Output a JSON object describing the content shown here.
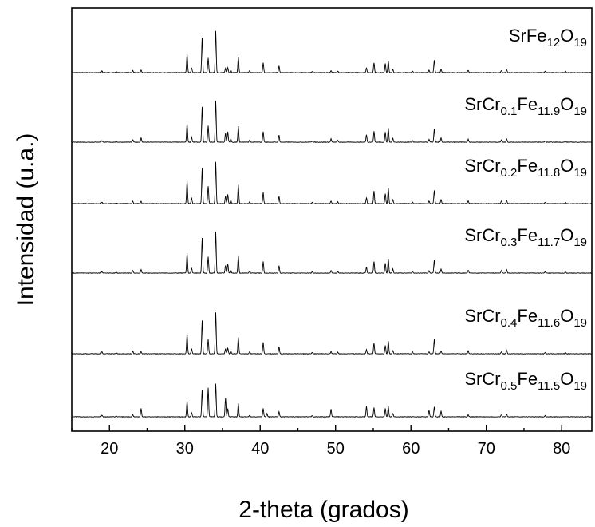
{
  "chart_data": {
    "type": "line",
    "title": "",
    "xlabel": "2-theta (grados)",
    "ylabel": "Intensidad (u.a.)",
    "xlim": [
      15,
      84
    ],
    "x_ticks": [
      "20",
      "30",
      "40",
      "50",
      "60",
      "70",
      "80"
    ],
    "x_tick_values": [
      20,
      30,
      40,
      50,
      60,
      70,
      80
    ],
    "y_ticks_shown": false,
    "grid": false,
    "colors": {
      "line": "#000000",
      "axis": "#000000",
      "background": "#ffffff"
    },
    "series": [
      {
        "name": "SrFe12O19",
        "label_main": "SrFe",
        "label_parts": [
          [
            "SrFe",
            ""
          ],
          [
            "12",
            "sub"
          ],
          [
            "O",
            ""
          ],
          [
            "19",
            "sub"
          ]
        ],
        "peaks": [
          [
            19.0,
            0.04
          ],
          [
            20.9,
            0.02
          ],
          [
            23.1,
            0.05
          ],
          [
            24.2,
            0.06
          ],
          [
            30.3,
            0.45
          ],
          [
            30.9,
            0.12
          ],
          [
            32.3,
            0.85
          ],
          [
            33.1,
            0.35
          ],
          [
            34.1,
            1.0
          ],
          [
            35.4,
            0.1
          ],
          [
            35.7,
            0.12
          ],
          [
            36.1,
            0.06
          ],
          [
            37.1,
            0.38
          ],
          [
            38.6,
            0.05
          ],
          [
            40.4,
            0.24
          ],
          [
            42.5,
            0.16
          ],
          [
            46.9,
            0.03
          ],
          [
            49.4,
            0.05
          ],
          [
            50.3,
            0.04
          ],
          [
            54.1,
            0.12
          ],
          [
            55.1,
            0.24
          ],
          [
            56.6,
            0.22
          ],
          [
            57.0,
            0.28
          ],
          [
            57.6,
            0.08
          ],
          [
            60.2,
            0.04
          ],
          [
            62.4,
            0.06
          ],
          [
            63.1,
            0.3
          ],
          [
            64.0,
            0.08
          ],
          [
            67.6,
            0.06
          ],
          [
            72.0,
            0.05
          ],
          [
            72.7,
            0.07
          ],
          [
            77.8,
            0.03
          ],
          [
            80.5,
            0.03
          ]
        ]
      },
      {
        "name": "SrCr0.1Fe11.9O19",
        "label_parts": [
          [
            "SrCr",
            ""
          ],
          [
            "0.1",
            "sub"
          ],
          [
            "Fe",
            ""
          ],
          [
            "11.9",
            "sub"
          ],
          [
            "O",
            ""
          ],
          [
            "19",
            "sub"
          ]
        ],
        "peaks": [
          [
            19.0,
            0.04
          ],
          [
            20.9,
            0.02
          ],
          [
            23.1,
            0.06
          ],
          [
            24.2,
            0.1
          ],
          [
            30.3,
            0.45
          ],
          [
            30.9,
            0.12
          ],
          [
            32.3,
            0.85
          ],
          [
            33.1,
            0.4
          ],
          [
            34.1,
            1.0
          ],
          [
            35.4,
            0.22
          ],
          [
            35.7,
            0.25
          ],
          [
            36.1,
            0.08
          ],
          [
            37.1,
            0.38
          ],
          [
            38.6,
            0.05
          ],
          [
            40.4,
            0.26
          ],
          [
            42.5,
            0.17
          ],
          [
            46.9,
            0.03
          ],
          [
            49.4,
            0.08
          ],
          [
            50.3,
            0.04
          ],
          [
            54.1,
            0.18
          ],
          [
            55.1,
            0.26
          ],
          [
            56.6,
            0.24
          ],
          [
            57.0,
            0.34
          ],
          [
            57.6,
            0.1
          ],
          [
            60.2,
            0.04
          ],
          [
            62.4,
            0.07
          ],
          [
            63.1,
            0.32
          ],
          [
            64.0,
            0.1
          ],
          [
            67.6,
            0.07
          ],
          [
            72.0,
            0.06
          ],
          [
            72.7,
            0.08
          ],
          [
            77.8,
            0.03
          ],
          [
            80.5,
            0.03
          ]
        ]
      },
      {
        "name": "SrCr0.2Fe11.8O19",
        "label_parts": [
          [
            "SrCr",
            ""
          ],
          [
            "0.2",
            "sub"
          ],
          [
            "Fe",
            ""
          ],
          [
            "11.8",
            "sub"
          ],
          [
            "O",
            ""
          ],
          [
            "19",
            "sub"
          ]
        ],
        "peaks": [
          [
            19.0,
            0.04
          ],
          [
            20.9,
            0.02
          ],
          [
            23.1,
            0.06
          ],
          [
            24.2,
            0.06
          ],
          [
            30.3,
            0.55
          ],
          [
            30.9,
            0.14
          ],
          [
            32.3,
            0.85
          ],
          [
            33.1,
            0.42
          ],
          [
            34.1,
            1.0
          ],
          [
            35.4,
            0.18
          ],
          [
            35.7,
            0.22
          ],
          [
            36.1,
            0.08
          ],
          [
            37.1,
            0.45
          ],
          [
            38.6,
            0.05
          ],
          [
            40.4,
            0.27
          ],
          [
            42.5,
            0.18
          ],
          [
            46.9,
            0.03
          ],
          [
            49.4,
            0.06
          ],
          [
            50.3,
            0.04
          ],
          [
            54.1,
            0.14
          ],
          [
            55.1,
            0.3
          ],
          [
            56.6,
            0.24
          ],
          [
            57.0,
            0.38
          ],
          [
            57.6,
            0.1
          ],
          [
            60.2,
            0.04
          ],
          [
            62.4,
            0.06
          ],
          [
            63.1,
            0.32
          ],
          [
            64.0,
            0.1
          ],
          [
            67.6,
            0.07
          ],
          [
            72.0,
            0.06
          ],
          [
            72.7,
            0.08
          ],
          [
            77.8,
            0.03
          ],
          [
            80.5,
            0.03
          ]
        ]
      },
      {
        "name": "SrCr0.3Fe11.7O19",
        "label_parts": [
          [
            "SrCr",
            ""
          ],
          [
            "0.3",
            "sub"
          ],
          [
            "Fe",
            ""
          ],
          [
            "11.7",
            "sub"
          ],
          [
            "O",
            ""
          ],
          [
            "19",
            "sub"
          ]
        ],
        "peaks": [
          [
            19.0,
            0.04
          ],
          [
            20.9,
            0.02
          ],
          [
            23.1,
            0.06
          ],
          [
            24.2,
            0.08
          ],
          [
            30.3,
            0.48
          ],
          [
            30.9,
            0.12
          ],
          [
            32.3,
            0.85
          ],
          [
            33.1,
            0.4
          ],
          [
            34.1,
            1.0
          ],
          [
            35.4,
            0.18
          ],
          [
            35.7,
            0.22
          ],
          [
            36.1,
            0.08
          ],
          [
            37.1,
            0.42
          ],
          [
            38.6,
            0.05
          ],
          [
            40.4,
            0.28
          ],
          [
            42.5,
            0.18
          ],
          [
            46.9,
            0.03
          ],
          [
            49.4,
            0.06
          ],
          [
            50.3,
            0.04
          ],
          [
            54.1,
            0.15
          ],
          [
            55.1,
            0.28
          ],
          [
            56.6,
            0.24
          ],
          [
            57.0,
            0.35
          ],
          [
            57.6,
            0.1
          ],
          [
            60.2,
            0.04
          ],
          [
            62.4,
            0.06
          ],
          [
            63.1,
            0.32
          ],
          [
            64.0,
            0.1
          ],
          [
            67.6,
            0.07
          ],
          [
            72.0,
            0.06
          ],
          [
            72.7,
            0.08
          ],
          [
            77.8,
            0.03
          ],
          [
            80.5,
            0.03
          ]
        ]
      },
      {
        "name": "SrCr0.4Fe11.6O19",
        "label_parts": [
          [
            "SrCr",
            ""
          ],
          [
            "0.4",
            "sub"
          ],
          [
            "Fe",
            ""
          ],
          [
            "11.6",
            "sub"
          ],
          [
            "O",
            ""
          ],
          [
            "19",
            "sub"
          ]
        ],
        "peaks": [
          [
            19.0,
            0.05
          ],
          [
            20.9,
            0.02
          ],
          [
            23.1,
            0.06
          ],
          [
            24.2,
            0.05
          ],
          [
            30.3,
            0.48
          ],
          [
            30.9,
            0.12
          ],
          [
            32.3,
            0.8
          ],
          [
            33.1,
            0.35
          ],
          [
            34.1,
            1.0
          ],
          [
            35.4,
            0.12
          ],
          [
            35.7,
            0.14
          ],
          [
            36.1,
            0.06
          ],
          [
            37.1,
            0.4
          ],
          [
            38.6,
            0.05
          ],
          [
            40.4,
            0.27
          ],
          [
            42.5,
            0.17
          ],
          [
            46.9,
            0.03
          ],
          [
            49.4,
            0.05
          ],
          [
            50.3,
            0.04
          ],
          [
            54.1,
            0.1
          ],
          [
            55.1,
            0.26
          ],
          [
            56.6,
            0.2
          ],
          [
            57.0,
            0.3
          ],
          [
            57.6,
            0.08
          ],
          [
            60.2,
            0.05
          ],
          [
            62.4,
            0.05
          ],
          [
            63.1,
            0.35
          ],
          [
            64.0,
            0.06
          ],
          [
            67.6,
            0.07
          ],
          [
            72.0,
            0.05
          ],
          [
            72.7,
            0.08
          ],
          [
            77.8,
            0.03
          ],
          [
            80.5,
            0.03
          ]
        ]
      },
      {
        "name": "SrCr0.5Fe11.5O19",
        "label_parts": [
          [
            "SrCr",
            ""
          ],
          [
            "0.5",
            "sub"
          ],
          [
            "Fe",
            ""
          ],
          [
            "11.5",
            "sub"
          ],
          [
            "O",
            ""
          ],
          [
            "19",
            "sub"
          ]
        ],
        "peaks": [
          [
            19.0,
            0.04
          ],
          [
            20.9,
            0.02
          ],
          [
            23.1,
            0.05
          ],
          [
            24.2,
            0.2
          ],
          [
            30.3,
            0.38
          ],
          [
            30.9,
            0.1
          ],
          [
            32.3,
            0.65
          ],
          [
            33.1,
            0.7
          ],
          [
            34.1,
            0.8
          ],
          [
            35.4,
            0.45
          ],
          [
            35.7,
            0.2
          ],
          [
            37.1,
            0.32
          ],
          [
            38.6,
            0.04
          ],
          [
            40.4,
            0.2
          ],
          [
            40.9,
            0.08
          ],
          [
            42.5,
            0.12
          ],
          [
            46.9,
            0.03
          ],
          [
            49.4,
            0.18
          ],
          [
            54.1,
            0.25
          ],
          [
            55.1,
            0.22
          ],
          [
            56.6,
            0.2
          ],
          [
            57.0,
            0.25
          ],
          [
            57.6,
            0.08
          ],
          [
            62.4,
            0.16
          ],
          [
            63.1,
            0.24
          ],
          [
            64.0,
            0.14
          ],
          [
            67.6,
            0.05
          ],
          [
            72.0,
            0.05
          ],
          [
            72.7,
            0.06
          ],
          [
            77.8,
            0.03
          ]
        ]
      }
    ]
  }
}
